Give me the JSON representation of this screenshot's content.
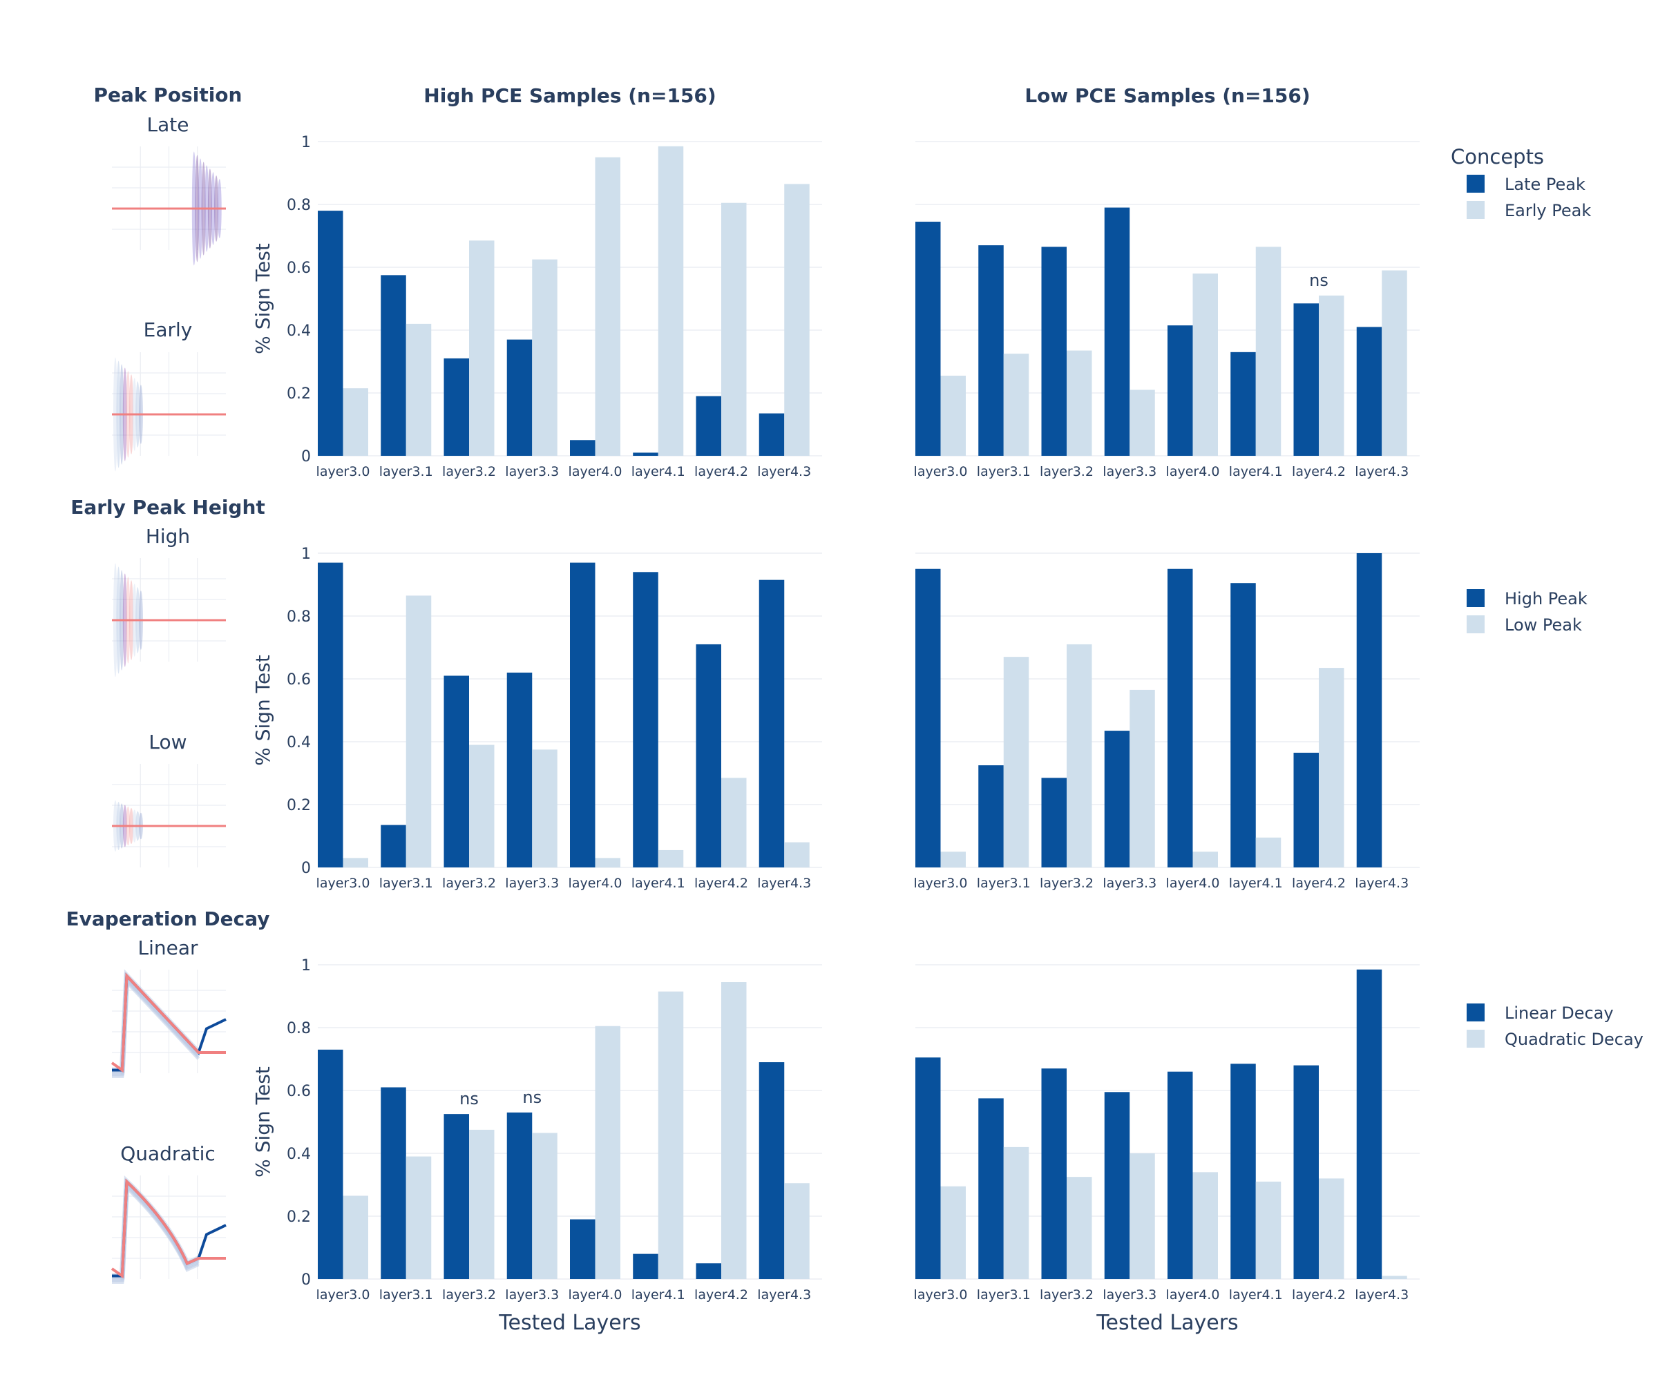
{
  "colors": {
    "dark_bar": "#08519c",
    "light_bar": "#cfdfec",
    "grid": "#ebedf3",
    "text": "#2a3f5f",
    "thumb_blue": "#3a5fa8",
    "thumb_red": "#f08080",
    "thumb_purple": "#5b2a8c"
  },
  "column_titles": [
    "High PCE Samples (n=156)",
    "Low PCE Samples (n=156)"
  ],
  "legend_title": "Concepts",
  "xlabel": "Tested Layers",
  "ylabel": "% Sign Test",
  "ns_label": "ns",
  "rows": [
    {
      "section_title": "Peak Position",
      "thumb_labels": [
        "Late",
        "Early"
      ],
      "legend": [
        "Late Peak",
        "Early Peak"
      ],
      "thumb_kinds": [
        "late",
        "early"
      ]
    },
    {
      "section_title": "Early Peak Height",
      "thumb_labels": [
        "High",
        "Low"
      ],
      "legend": [
        "High Peak",
        "Low Peak"
      ],
      "thumb_kinds": [
        "high",
        "low"
      ]
    },
    {
      "section_title": "Evaperation Decay",
      "thumb_labels": [
        "Linear",
        "Quadratic"
      ],
      "legend": [
        "Linear Decay",
        "Quadratic Decay"
      ],
      "thumb_kinds": [
        "linear",
        "quadratic"
      ]
    }
  ],
  "chart_data": [
    {
      "type": "bar",
      "row": 0,
      "col": 0,
      "title": "High PCE Samples (n=156)",
      "categories": [
        "layer3.0",
        "layer3.1",
        "layer3.2",
        "layer3.3",
        "layer4.0",
        "layer4.1",
        "layer4.2",
        "layer4.3"
      ],
      "series": [
        {
          "name": "Late Peak",
          "values": [
            0.78,
            0.575,
            0.31,
            0.37,
            0.05,
            0.01,
            0.19,
            0.135
          ]
        },
        {
          "name": "Early Peak",
          "values": [
            0.215,
            0.42,
            0.685,
            0.625,
            0.95,
            0.985,
            0.805,
            0.865
          ]
        }
      ],
      "ns": [],
      "ylabel": "% Sign Test",
      "ylim": [
        0,
        1
      ]
    },
    {
      "type": "bar",
      "row": 0,
      "col": 1,
      "title": "Low PCE Samples (n=156)",
      "categories": [
        "layer3.0",
        "layer3.1",
        "layer3.2",
        "layer3.3",
        "layer4.0",
        "layer4.1",
        "layer4.2",
        "layer4.3"
      ],
      "series": [
        {
          "name": "Late Peak",
          "values": [
            0.745,
            0.67,
            0.665,
            0.79,
            0.415,
            0.33,
            0.485,
            0.41
          ]
        },
        {
          "name": "Early Peak",
          "values": [
            0.255,
            0.325,
            0.335,
            0.21,
            0.58,
            0.665,
            0.51,
            0.59
          ]
        }
      ],
      "ns": [
        6
      ],
      "ylim": [
        0,
        1
      ]
    },
    {
      "type": "bar",
      "row": 1,
      "col": 0,
      "categories": [
        "layer3.0",
        "layer3.1",
        "layer3.2",
        "layer3.3",
        "layer4.0",
        "layer4.1",
        "layer4.2",
        "layer4.3"
      ],
      "series": [
        {
          "name": "High Peak",
          "values": [
            0.97,
            0.135,
            0.61,
            0.62,
            0.97,
            0.94,
            0.71,
            0.915
          ]
        },
        {
          "name": "Low Peak",
          "values": [
            0.03,
            0.865,
            0.39,
            0.375,
            0.03,
            0.055,
            0.285,
            0.08
          ]
        }
      ],
      "ns": [],
      "ylabel": "% Sign Test",
      "ylim": [
        0,
        1
      ]
    },
    {
      "type": "bar",
      "row": 1,
      "col": 1,
      "categories": [
        "layer3.0",
        "layer3.1",
        "layer3.2",
        "layer3.3",
        "layer4.0",
        "layer4.1",
        "layer4.2",
        "layer4.3"
      ],
      "series": [
        {
          "name": "High Peak",
          "values": [
            0.95,
            0.325,
            0.285,
            0.435,
            0.95,
            0.905,
            0.365,
            1.0
          ]
        },
        {
          "name": "Low Peak",
          "values": [
            0.05,
            0.67,
            0.71,
            0.565,
            0.05,
            0.095,
            0.635,
            0.0
          ]
        }
      ],
      "ns": [],
      "ylim": [
        0,
        1
      ]
    },
    {
      "type": "bar",
      "row": 2,
      "col": 0,
      "categories": [
        "layer3.0",
        "layer3.1",
        "layer3.2",
        "layer3.3",
        "layer4.0",
        "layer4.1",
        "layer4.2",
        "layer4.3"
      ],
      "series": [
        {
          "name": "Linear Decay",
          "values": [
            0.73,
            0.61,
            0.525,
            0.53,
            0.19,
            0.08,
            0.05,
            0.69
          ]
        },
        {
          "name": "Quadratic Decay",
          "values": [
            0.265,
            0.39,
            0.475,
            0.465,
            0.805,
            0.915,
            0.945,
            0.305
          ]
        }
      ],
      "ns": [
        2,
        3
      ],
      "xlabel": "Tested Layers",
      "ylabel": "% Sign Test",
      "ylim": [
        0,
        1
      ]
    },
    {
      "type": "bar",
      "row": 2,
      "col": 1,
      "categories": [
        "layer3.0",
        "layer3.1",
        "layer3.2",
        "layer3.3",
        "layer4.0",
        "layer4.1",
        "layer4.2",
        "layer4.3"
      ],
      "series": [
        {
          "name": "Linear Decay",
          "values": [
            0.705,
            0.575,
            0.67,
            0.595,
            0.66,
            0.685,
            0.68,
            0.985
          ]
        },
        {
          "name": "Quadratic Decay",
          "values": [
            0.295,
            0.42,
            0.325,
            0.4,
            0.34,
            0.31,
            0.32,
            0.01
          ]
        }
      ],
      "ns": [],
      "xlabel": "Tested Layers",
      "ylim": [
        0,
        1
      ]
    }
  ],
  "yticks": [
    "0",
    "0.2",
    "0.4",
    "0.6",
    "0.8",
    "1"
  ]
}
